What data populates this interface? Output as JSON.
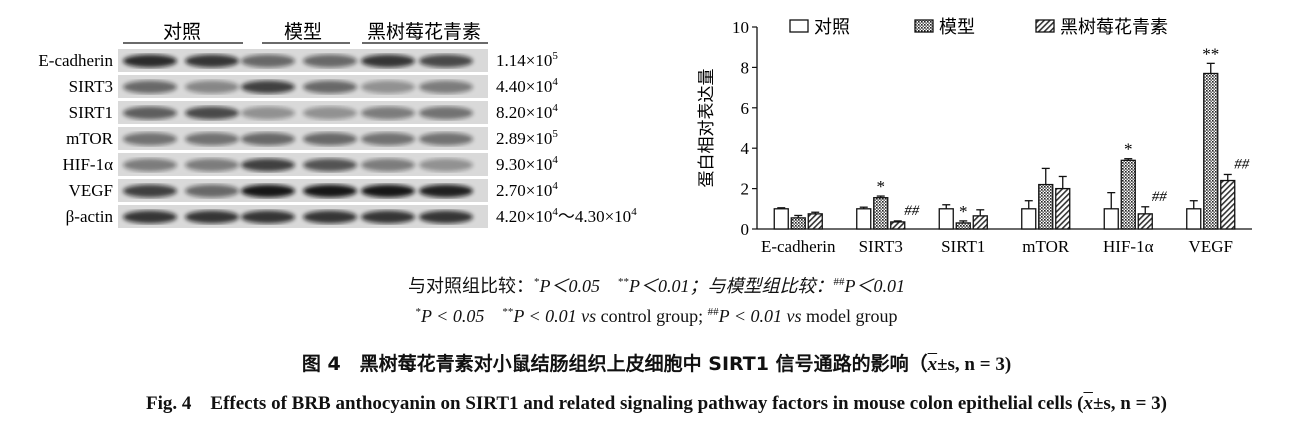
{
  "blot": {
    "groups": [
      "对照",
      "模型",
      "黑树莓花青素"
    ],
    "rows": [
      {
        "label": "E-cadherin",
        "value": "1.14×10",
        "exp": "5"
      },
      {
        "label": "SIRT3",
        "value": "4.40×10",
        "exp": "4"
      },
      {
        "label": "SIRT1",
        "value": "8.20×10",
        "exp": "4"
      },
      {
        "label": "mTOR",
        "value": "2.89×10",
        "exp": "5"
      },
      {
        "label": "HIF-1α",
        "value": "9.30×10",
        "exp": "4"
      },
      {
        "label": "VEGF",
        "value": "2.70×10",
        "exp": "4"
      },
      {
        "label": "β-actin",
        "value": "4.20×10",
        "exp": "4",
        "value2": "～4.30×10",
        "exp2": "4"
      }
    ]
  },
  "chart_data": {
    "type": "bar",
    "ylabel": "蛋白相对表达量",
    "ylim": [
      0,
      10
    ],
    "yticks": [
      "0",
      "2",
      "4",
      "6",
      "8",
      "10"
    ],
    "categories": [
      "E-cadherin",
      "SIRT3",
      "SIRT1",
      "mTOR",
      "HIF-1α",
      "VEGF"
    ],
    "legend_position": "top",
    "series": [
      {
        "name": "对照",
        "pattern": "white",
        "values": [
          1.0,
          1.0,
          1.0,
          1.0,
          1.0,
          1.0
        ],
        "errors": [
          0.05,
          0.08,
          0.2,
          0.4,
          0.8,
          0.4
        ]
      },
      {
        "name": "模型",
        "pattern": "dots",
        "values": [
          0.55,
          1.55,
          0.3,
          2.2,
          3.4,
          7.7
        ],
        "errors": [
          0.12,
          0.08,
          0.1,
          0.8,
          0.08,
          0.5
        ]
      },
      {
        "name": "黑树莓花青素",
        "pattern": "hatch",
        "values": [
          0.75,
          0.35,
          0.65,
          2.0,
          0.75,
          2.4
        ],
        "errors": [
          0.08,
          0.05,
          0.3,
          0.6,
          0.35,
          0.3
        ]
      }
    ],
    "annotations": [
      {
        "category": "SIRT3",
        "series": 1,
        "text": "*"
      },
      {
        "category": "SIRT3",
        "series": 2,
        "text": "##"
      },
      {
        "category": "SIRT1",
        "series": 1,
        "text": "*"
      },
      {
        "category": "HIF-1α",
        "series": 1,
        "text": "*"
      },
      {
        "category": "HIF-1α",
        "series": 2,
        "text": "##"
      },
      {
        "category": "VEGF",
        "series": 1,
        "text": "**"
      },
      {
        "category": "VEGF",
        "series": 2,
        "text": "##"
      }
    ]
  },
  "footnote": {
    "cn_a": "与对照组比较：",
    "cn_b": "P＜0.05",
    "cn_c": "P＜0.01；与模型组比较：",
    "cn_d": "P＜0.01",
    "en_a": "P < 0.05",
    "en_b": "P < 0.01",
    "en_c": "vs",
    "en_d": "control group;",
    "en_e": "P < 0.01",
    "en_f": "vs",
    "en_g": "model group",
    "star": "*",
    "dstar": "**",
    "hash": "##"
  },
  "caption": {
    "cn_text": "图 4　黑树莓花青素对小鼠结肠组织上皮细胞中 SIRT1 信号通路的影响（",
    "cn_tail": "±s, n = 3)",
    "en_text": "Fig. 4　Effects of BRB anthocyanin on SIRT1 and related signaling pathway factors in mouse colon epithelial cells (",
    "en_tail": "±s, n = 3)",
    "x": "x"
  }
}
